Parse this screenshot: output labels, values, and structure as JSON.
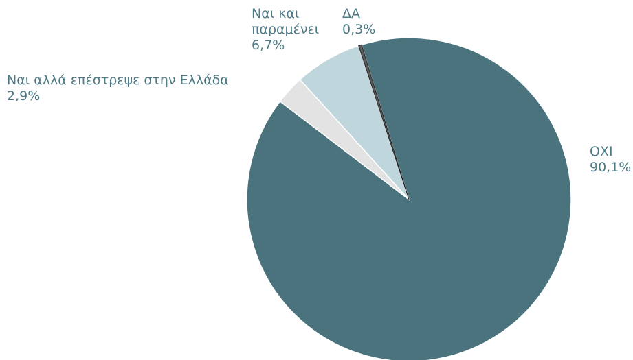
{
  "chart_data": {
    "type": "pie",
    "categories": [
      "ΟΧΙ",
      "Ναι αλλά επέστρεψε στην Ελλάδα",
      "Ναι και παραμένει",
      "ΔΑ"
    ],
    "values": [
      90.1,
      2.9,
      6.7,
      0.3
    ],
    "value_labels": [
      "90,1%",
      "2,9%",
      "6,7%",
      "0,3%"
    ],
    "colors": [
      "#4a737d",
      "#e3e3e3",
      "#bfd6dc",
      "#5a5a5a"
    ]
  }
}
